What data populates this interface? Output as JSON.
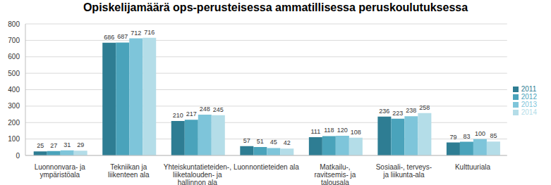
{
  "chart_data": {
    "type": "bar",
    "title": "Opiskelijamäärä ops-perusteisessa ammatillisessa peruskoulutuksessa",
    "categories": [
      "Luonnonvara- ja ympäristöala",
      "Tekniikan ja liikenteen ala",
      "Yhteiskuntatieteiden-, liiketalouden- ja hallinnon ala",
      "Luonnontieteiden ala",
      "Matkailu-, ravitsemis- ja talousala",
      "Sosiaali-, terveys- ja liikunta-ala",
      "Kulttuuriala"
    ],
    "series": [
      {
        "name": "2011",
        "color": "#2E7D93",
        "values": [
          25,
          686,
          210,
          57,
          111,
          236,
          79
        ]
      },
      {
        "name": "2012",
        "color": "#4AA3BB",
        "values": [
          27,
          687,
          217,
          51,
          118,
          223,
          83
        ]
      },
      {
        "name": "2013",
        "color": "#7EC5DA",
        "values": [
          31,
          712,
          248,
          45,
          120,
          238,
          100
        ]
      },
      {
        "name": "2014",
        "color": "#B4DDE8",
        "values": [
          29,
          716,
          245,
          42,
          108,
          258,
          85
        ]
      }
    ],
    "ylim": [
      0,
      800
    ],
    "yticks": [
      0,
      100,
      200,
      300,
      400,
      500,
      600,
      700,
      800
    ],
    "grid": true,
    "data_labels": true,
    "legend": "right"
  }
}
